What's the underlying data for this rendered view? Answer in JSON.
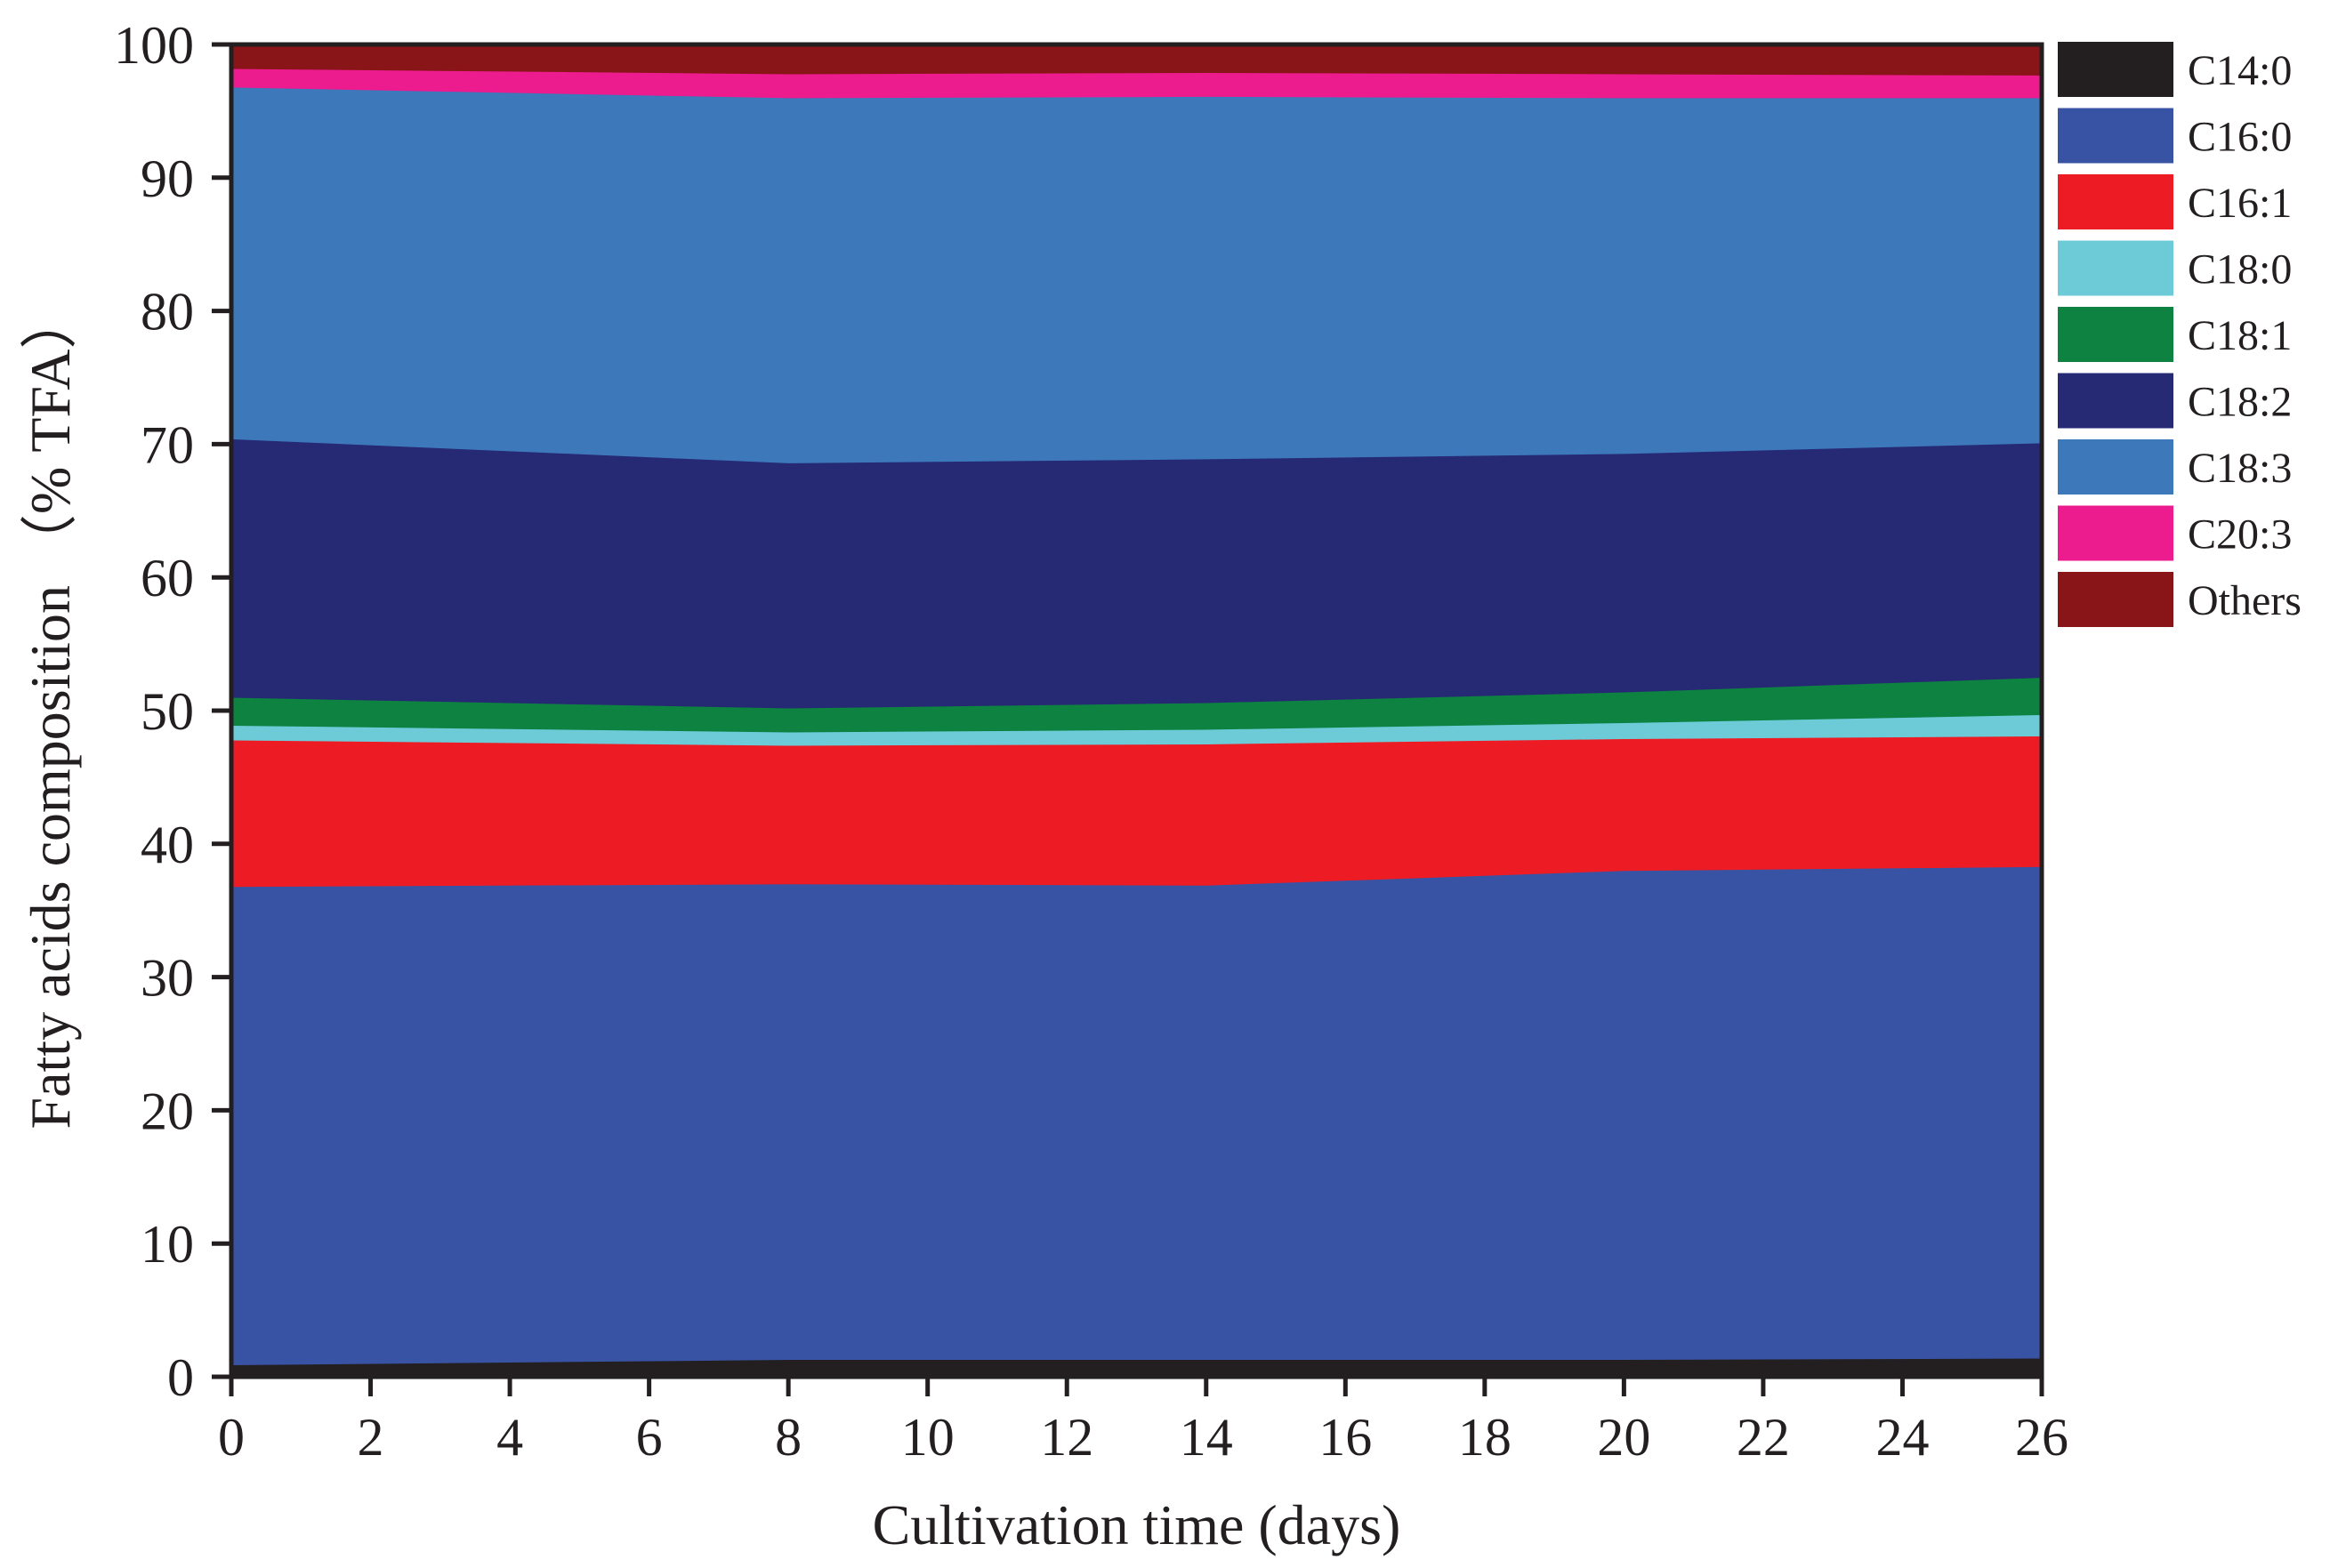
{
  "chart_data": {
    "type": "area",
    "stacked": true,
    "xlabel": "Cultivation time (days)",
    "ylabel": "Fatty acids composition （% TFA）",
    "xlim": [
      0,
      26
    ],
    "ylim": [
      0,
      100
    ],
    "xticks": [
      0,
      2,
      4,
      6,
      8,
      10,
      12,
      14,
      16,
      18,
      20,
      22,
      24,
      26
    ],
    "yticks": [
      0,
      10,
      20,
      30,
      40,
      50,
      60,
      70,
      80,
      90,
      100
    ],
    "grid": false,
    "legend_position": "right",
    "x": [
      0,
      8,
      14,
      20,
      26
    ],
    "series": [
      {
        "name": "C14:0",
        "color": "#231f20",
        "values": [
          0.9,
          1.3,
          1.3,
          1.3,
          1.4
        ]
      },
      {
        "name": "C16:0",
        "color": "#3953a4",
        "values": [
          35.9,
          35.7,
          35.6,
          36.7,
          36.9
        ]
      },
      {
        "name": "C16:1",
        "color": "#ed1c24",
        "values": [
          11.0,
          10.4,
          10.6,
          9.9,
          9.8
        ]
      },
      {
        "name": "C18:0",
        "color": "#6dcbd8",
        "values": [
          1.1,
          1.0,
          1.1,
          1.2,
          1.6
        ]
      },
      {
        "name": "C18:1",
        "color": "#0d8241",
        "values": [
          2.1,
          1.8,
          2.0,
          2.3,
          2.8
        ]
      },
      {
        "name": "C18:2",
        "color": "#262973",
        "values": [
          19.4,
          18.4,
          18.3,
          17.9,
          17.6
        ]
      },
      {
        "name": "C18:3",
        "color": "#3d78bb",
        "values": [
          26.4,
          27.4,
          27.2,
          26.7,
          25.9
        ]
      },
      {
        "name": "C20:3",
        "color": "#ec1b8e",
        "values": [
          1.4,
          1.8,
          1.8,
          1.8,
          1.7
        ]
      },
      {
        "name": "Others",
        "color": "#891518",
        "values": [
          1.8,
          2.2,
          2.1,
          2.2,
          2.3
        ]
      }
    ]
  }
}
